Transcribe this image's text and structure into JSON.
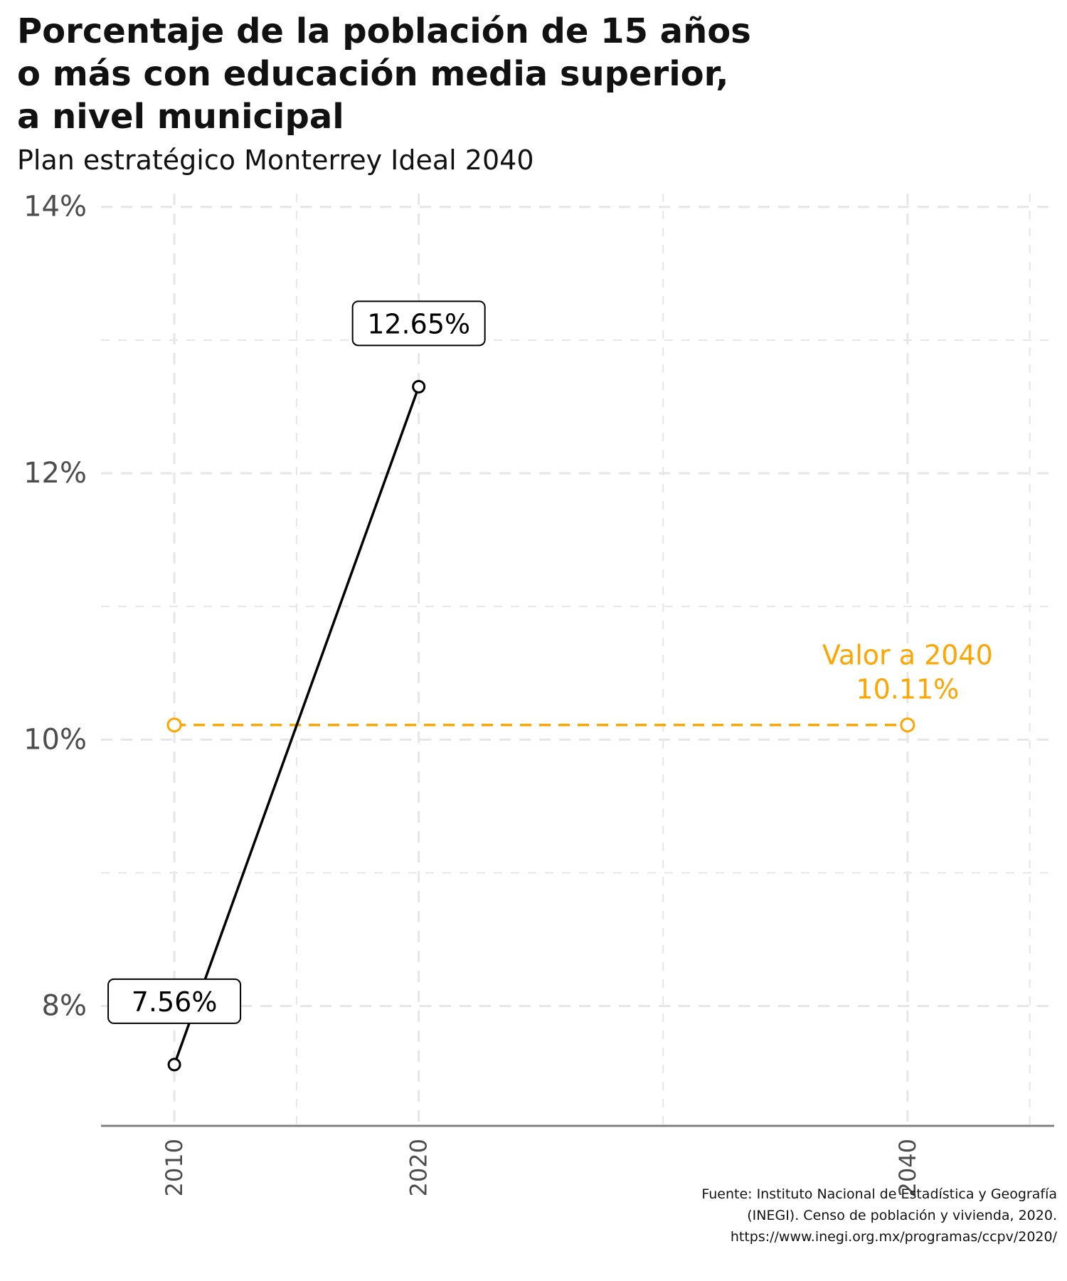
{
  "title": "Porcentaje de la población de 15 años o más con educación media superior, a nivel municipal",
  "subtitle": "Plan estratégico Monterrey Ideal 2040",
  "caption": {
    "line1": "Fuente: Instituto Nacional de Estadística y Geografía",
    "line2": "(INEGI). Censo de población y vivienda, 2020.",
    "line3": "https://www.inegi.org.mx/programas/ccpv/2020/"
  },
  "colors": {
    "series": "#000000",
    "target": "#ffa500",
    "grid": "#e6e6e6",
    "axis": "#808080",
    "tick_text": "#4d4d4d"
  },
  "chart_data": {
    "type": "line",
    "title": "Porcentaje de la población de 15 años o más con educación media superior, a nivel municipal",
    "subtitle": "Plan estratégico Monterrey Ideal 2040",
    "xlabel": "",
    "ylabel": "",
    "x_ticks": [
      2010,
      2020,
      2040
    ],
    "x_minor_grid": [
      2015,
      2030,
      2045
    ],
    "xlim": [
      2007,
      2046
    ],
    "y_ticks": [
      8,
      10,
      12,
      14
    ],
    "y_tick_labels": [
      "8%",
      "10%",
      "12%",
      "14%"
    ],
    "y_minor_grid": [
      9,
      11,
      13
    ],
    "ylim": [
      7.1,
      14.1
    ],
    "grid": true,
    "series": [
      {
        "x": [
          2010,
          2020
        ],
        "values": [
          7.56,
          12.65
        ],
        "labels": [
          "7.56%",
          "12.65%"
        ]
      }
    ],
    "target": {
      "x": [
        2010,
        2040
      ],
      "values": [
        10.11,
        10.11
      ],
      "label_line1": "Valor a 2040",
      "label_line2": "10.11%"
    }
  }
}
